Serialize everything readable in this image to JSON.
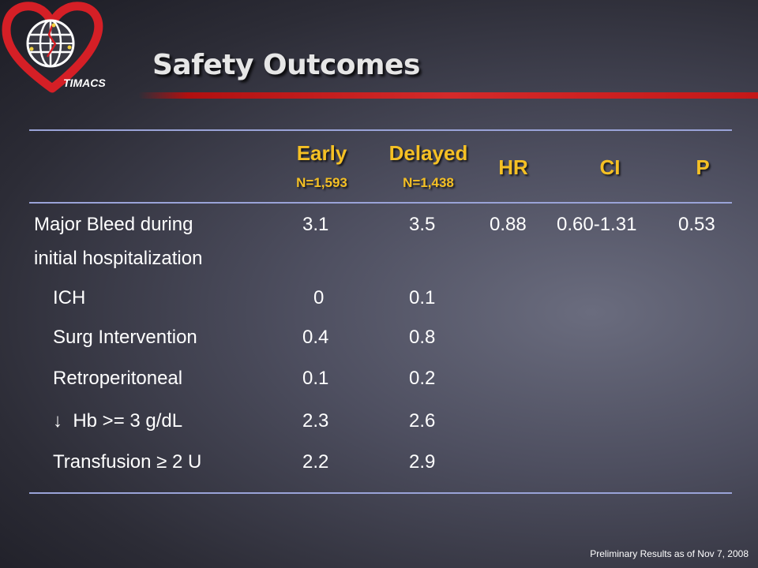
{
  "logo": {
    "text": "TIMACS",
    "icon": "heart-globe-icon",
    "colors": {
      "heart": "#d51f26",
      "globe": "#ffffff"
    }
  },
  "title": "Safety Outcomes",
  "table": {
    "headers": {
      "early": "Early",
      "early_n": "N=1,593",
      "delayed": "Delayed",
      "delayed_n": "N=1,438",
      "hr": "HR",
      "ci": "CI",
      "p": "P"
    },
    "rows": [
      {
        "label": "Major Bleed during",
        "label2": "initial hospitalization",
        "early": "3.1",
        "delayed": "3.5",
        "hr": "0.88",
        "ci": "0.60-1.31",
        "p": "0.53"
      },
      {
        "label": "ICH",
        "early": "0",
        "delayed": "0.1"
      },
      {
        "label": "Surg Intervention",
        "early": "0.4",
        "delayed": "0.8"
      },
      {
        "label": "Retroperitoneal",
        "early": "0.1",
        "delayed": "0.2"
      },
      {
        "label": "↓  Hb >= 3 g/dL",
        "early": "2.3",
        "delayed": "2.6"
      },
      {
        "label": "Transfusion ≥ 2 U",
        "early": "2.2",
        "delayed": "2.9"
      }
    ]
  },
  "footer": "Preliminary Results as of Nov 7, 2008",
  "colors": {
    "header_text": "#f5c024",
    "body_text": "#ffffff",
    "rule": "#9aa3d8",
    "accent_red": "#d42a2a"
  }
}
